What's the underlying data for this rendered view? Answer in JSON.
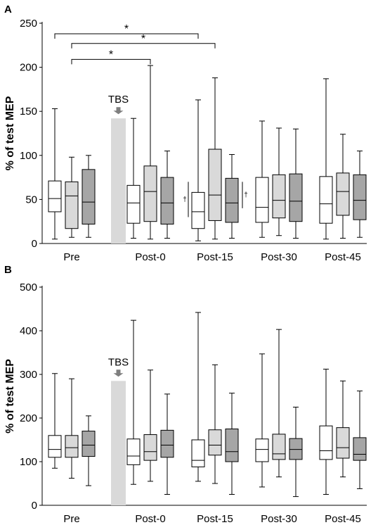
{
  "chart_data": [
    {
      "panel": "A",
      "type": "boxplot",
      "ylabel": "% of test MEP",
      "ylim": [
        0,
        250
      ],
      "yticks": [
        0,
        50,
        100,
        150,
        200,
        250
      ],
      "categories": [
        "Pre",
        "Post-0",
        "Post-15",
        "Post-30",
        "Post-45"
      ],
      "series_colors": [
        "#ffffff",
        "#d9d9d9",
        "#a6a6a6"
      ],
      "annotation_label": "TBS",
      "tbs_bar_top": 142,
      "groups": [
        [
          {
            "min": 5,
            "q1": 36,
            "median": 51,
            "q3": 71,
            "max": 153
          },
          {
            "min": 7,
            "q1": 17,
            "median": 54,
            "q3": 70,
            "max": 98
          },
          {
            "min": 7,
            "q1": 22,
            "median": 47,
            "q3": 84,
            "max": 100
          }
        ],
        [
          {
            "min": 6,
            "q1": 23,
            "median": 46,
            "q3": 66,
            "max": 142
          },
          {
            "min": 5,
            "q1": 25,
            "median": 59,
            "q3": 88,
            "max": 202
          },
          {
            "min": 6,
            "q1": 22,
            "median": 46,
            "q3": 75,
            "max": 105
          }
        ],
        [
          {
            "min": 3,
            "q1": 17,
            "median": 36,
            "q3": 58,
            "max": 163
          },
          {
            "min": 5,
            "q1": 26,
            "median": 55,
            "q3": 107,
            "max": 188
          },
          {
            "min": 6,
            "q1": 24,
            "median": 46,
            "q3": 74,
            "max": 101
          }
        ],
        [
          {
            "min": 7,
            "q1": 24,
            "median": 41,
            "q3": 75,
            "max": 139
          },
          {
            "min": 9,
            "q1": 29,
            "median": 49,
            "q3": 78,
            "max": 131
          },
          {
            "min": 6,
            "q1": 25,
            "median": 48,
            "q3": 79,
            "max": 130
          }
        ],
        [
          {
            "min": 5,
            "q1": 23,
            "median": 45,
            "q3": 76,
            "max": 187
          },
          {
            "min": 6,
            "q1": 32,
            "median": 59,
            "q3": 80,
            "max": 124
          },
          {
            "min": 7,
            "q1": 27,
            "median": 49,
            "q3": 78,
            "max": 105
          }
        ]
      ],
      "significance": [
        {
          "from": [
            0,
            0
          ],
          "to": [
            2,
            0
          ],
          "y": 238,
          "label": "*"
        },
        {
          "from": [
            0,
            1
          ],
          "to": [
            2,
            1
          ],
          "y": 227,
          "label": "*"
        },
        {
          "from": [
            0,
            1
          ],
          "to": [
            1,
            1
          ],
          "y": 209,
          "label": "*"
        }
      ],
      "daggers": [
        {
          "group": 2,
          "side": "left",
          "y_low": 30,
          "y_high": 70,
          "label": "†"
        },
        {
          "group": 2,
          "side": "right",
          "y_low": 40,
          "y_high": 70,
          "label": "†"
        }
      ]
    },
    {
      "panel": "B",
      "type": "boxplot",
      "ylabel": "% of test MEP",
      "ylim": [
        0,
        500
      ],
      "yticks": [
        0,
        100,
        200,
        300,
        400,
        500
      ],
      "categories": [
        "Pre",
        "Post-0",
        "Post-15",
        "Post-30",
        "Post-45"
      ],
      "series_colors": [
        "#ffffff",
        "#d9d9d9",
        "#a6a6a6"
      ],
      "annotation_label": "TBS",
      "tbs_bar_top": 285,
      "groups": [
        [
          {
            "min": 85,
            "q1": 110,
            "median": 128,
            "q3": 160,
            "max": 302
          },
          {
            "min": 62,
            "q1": 110,
            "median": 132,
            "q3": 160,
            "max": 290
          },
          {
            "min": 45,
            "q1": 112,
            "median": 138,
            "q3": 170,
            "max": 205
          }
        ],
        [
          {
            "min": 48,
            "q1": 93,
            "median": 113,
            "q3": 152,
            "max": 424
          },
          {
            "min": 55,
            "q1": 103,
            "median": 123,
            "q3": 162,
            "max": 310
          },
          {
            "min": 25,
            "q1": 110,
            "median": 138,
            "q3": 172,
            "max": 255
          }
        ],
        [
          {
            "min": 55,
            "q1": 88,
            "median": 103,
            "q3": 150,
            "max": 442
          },
          {
            "min": 50,
            "q1": 115,
            "median": 138,
            "q3": 173,
            "max": 322
          },
          {
            "min": 25,
            "q1": 100,
            "median": 123,
            "q3": 175,
            "max": 257
          }
        ],
        [
          {
            "min": 42,
            "q1": 100,
            "median": 128,
            "q3": 152,
            "max": 347
          },
          {
            "min": 65,
            "q1": 105,
            "median": 118,
            "q3": 163,
            "max": 403
          },
          {
            "min": 20,
            "q1": 105,
            "median": 128,
            "q3": 153,
            "max": 225
          }
        ],
        [
          {
            "min": 25,
            "q1": 105,
            "median": 125,
            "q3": 182,
            "max": 312
          },
          {
            "min": 65,
            "q1": 108,
            "median": 132,
            "q3": 178,
            "max": 285
          },
          {
            "min": 38,
            "q1": 103,
            "median": 117,
            "q3": 155,
            "max": 262
          }
        ]
      ],
      "significance": [],
      "daggers": []
    }
  ]
}
